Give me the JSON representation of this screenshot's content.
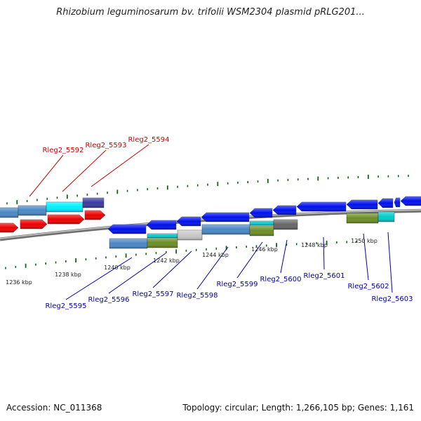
{
  "title": "Rhizobium leguminosarum bv. trifolii WSM2304 plasmid pRLG201...",
  "footer": {
    "accession": "Accession: NC_011368",
    "info": "Topology: circular; Length: 1,266,105 bp; Genes: 1,161"
  },
  "colors": {
    "forward_label": "#cc0000",
    "reverse_label": "#0000aa",
    "tick": "#116611",
    "backbone": "#8a8a8a"
  },
  "kbp_labels": [
    "1236 kbp",
    "1238 kbp",
    "1240 kbp",
    "1242 kbp",
    "1244 kbp",
    "1246 kbp",
    "1248 kbp",
    "1250 kbp"
  ],
  "gene_labels": [
    {
      "text": "Rleg2_5592",
      "strand": "forward"
    },
    {
      "text": "Rleg2_5593",
      "strand": "forward"
    },
    {
      "text": "Rleg2_5594",
      "strand": "forward"
    },
    {
      "text": "Rleg2_5595",
      "strand": "reverse"
    },
    {
      "text": "Rleg2_5596",
      "strand": "reverse"
    },
    {
      "text": "Rleg2_5597",
      "strand": "reverse"
    },
    {
      "text": "Rleg2_5598",
      "strand": "reverse"
    },
    {
      "text": "Rleg2_5599",
      "strand": "reverse"
    },
    {
      "text": "Rleg2_5600",
      "strand": "reverse"
    },
    {
      "text": "Rleg2_5601",
      "strand": "reverse"
    },
    {
      "text": "Rleg2_5602",
      "strand": "reverse"
    },
    {
      "text": "Rleg2_5603",
      "strand": "reverse"
    }
  ]
}
